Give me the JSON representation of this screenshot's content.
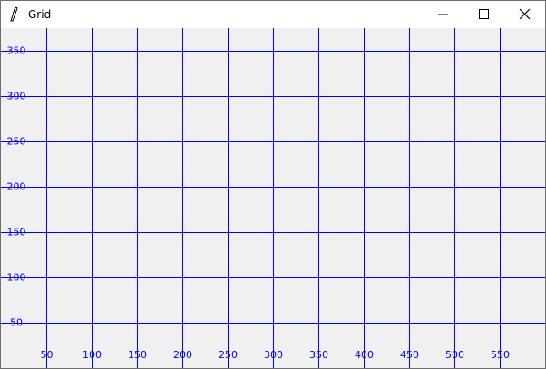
{
  "window": {
    "title": "Grid"
  },
  "grid": {
    "color": "#0000ff",
    "xlim": [
      0,
      600
    ],
    "ylim": [
      0,
      375
    ],
    "xticks": [
      50,
      100,
      150,
      200,
      250,
      300,
      350,
      400,
      450,
      500,
      550
    ],
    "yticks": [
      50,
      100,
      150,
      200,
      250,
      300,
      350
    ]
  }
}
